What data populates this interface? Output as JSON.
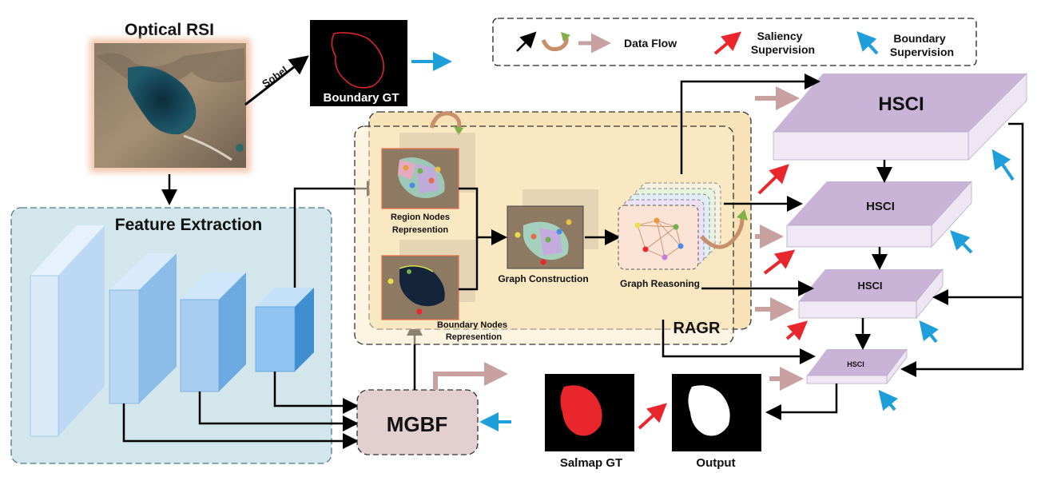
{
  "labels": {
    "optical_rsi": "Optical RSI",
    "sobel": "Sobel",
    "boundary_gt": "Boundary GT",
    "feature_extraction": "Feature Extraction",
    "region_nodes_line1": "Region  Nodes",
    "region_nodes_line2": "Represention",
    "boundary_nodes_line1": "Boundary  Nodes",
    "boundary_nodes_line2": "Represention",
    "graph_construction": "Graph Construction",
    "graph_reasoning": "Graph Reasoning",
    "ragr": "RAGR",
    "mgbf": "MGBF",
    "hsci_1": "HSCI",
    "hsci_2": "HSCI",
    "hsci_3": "HSCI",
    "hsci_4": "HSCI",
    "salmap_gt": "Salmap GT",
    "output": "Output"
  },
  "legend": {
    "data_flow": "Data Flow",
    "saliency_line1": "Saliency",
    "saliency_line2": "Supervision",
    "boundary_line1": "Boundary",
    "boundary_line2": "Supervision"
  },
  "colors": {
    "saliency_arrow": "#e8262b",
    "boundary_arrow": "#1e9fd9",
    "data_flow_arrow": "#c9a0a0",
    "hsci_face": "#c9b3d6",
    "feature_panel": "#d3e6ec",
    "ragr_panel": "#f7e3b7",
    "mgbf_box": "#e3cfcf"
  }
}
